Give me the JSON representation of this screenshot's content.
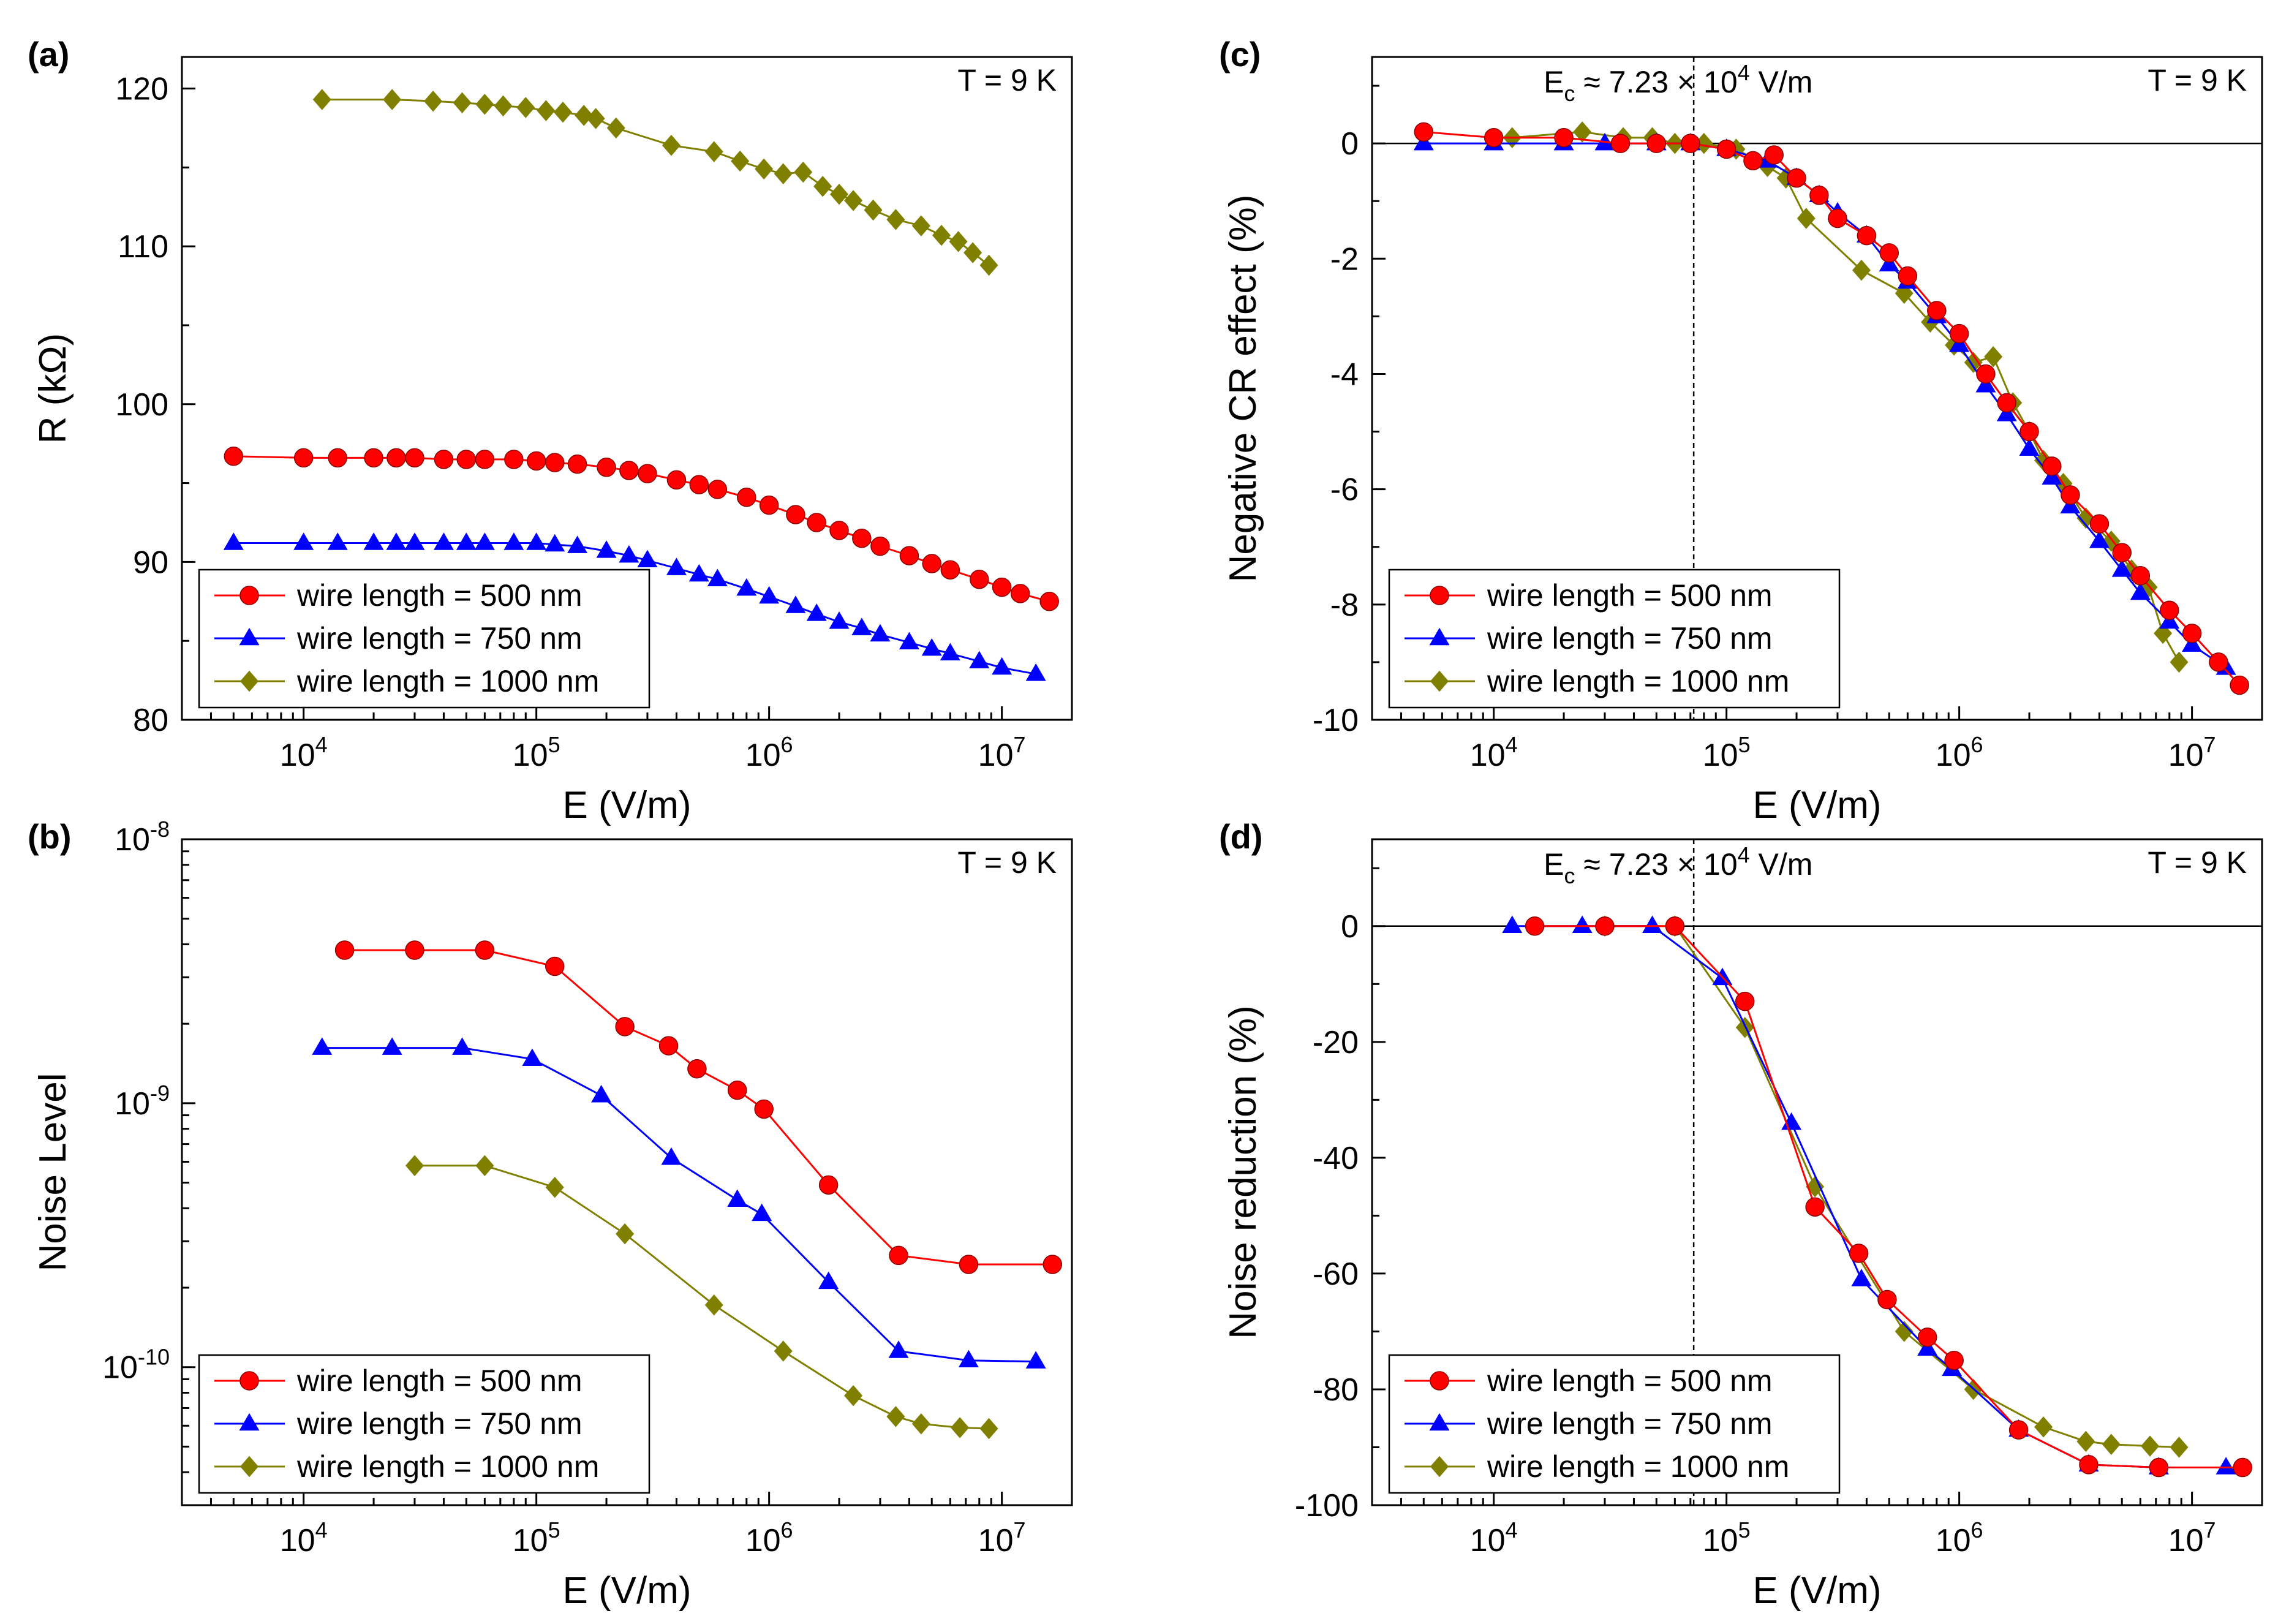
{
  "chart_data": [
    {
      "panel": "(a)",
      "type": "line",
      "annotation": "T = 9 K",
      "xlabel": "E (V/m)",
      "ylabel": "R (kΩ)",
      "xscale": "log",
      "xlim": [
        3000,
        20000000
      ],
      "ylim": [
        80,
        122
      ],
      "yticks": [
        80,
        90,
        100,
        110,
        120
      ],
      "xticks": [
        10000,
        100000,
        1000000,
        10000000
      ],
      "legend_position": "bottom-left",
      "series": [
        {
          "name": "wire length = 500 nm",
          "color": "#ff0000",
          "marker": "circle",
          "x": [
            5000,
            10000,
            14000,
            20000,
            25000,
            30000,
            40000,
            50000,
            60000,
            80000,
            100000,
            120000,
            150000,
            200000,
            250000,
            300000,
            400000,
            500000,
            600000,
            800000,
            1000000,
            1300000,
            1600000,
            2000000,
            2500000,
            3000000,
            4000000,
            5000000,
            6000000,
            8000000,
            10000000,
            12000000,
            16000000
          ],
          "y": [
            96.7,
            96.6,
            96.6,
            96.6,
            96.6,
            96.6,
            96.5,
            96.5,
            96.5,
            96.5,
            96.4,
            96.3,
            96.2,
            96.0,
            95.8,
            95.6,
            95.2,
            94.9,
            94.6,
            94.1,
            93.6,
            93.0,
            92.5,
            92.0,
            91.5,
            91.0,
            90.4,
            89.9,
            89.5,
            88.9,
            88.4,
            88.0,
            87.5
          ]
        },
        {
          "name": "wire length = 750 nm",
          "color": "#0000ff",
          "marker": "triangle",
          "x": [
            5000,
            10000,
            14000,
            20000,
            25000,
            30000,
            40000,
            50000,
            60000,
            80000,
            100000,
            120000,
            150000,
            200000,
            250000,
            300000,
            400000,
            500000,
            600000,
            800000,
            1000000,
            1300000,
            1600000,
            2000000,
            2500000,
            3000000,
            4000000,
            5000000,
            6000000,
            8000000,
            10000000,
            14000000
          ],
          "y": [
            91.2,
            91.2,
            91.2,
            91.2,
            91.2,
            91.2,
            91.2,
            91.2,
            91.2,
            91.2,
            91.2,
            91.1,
            91.0,
            90.7,
            90.4,
            90.1,
            89.6,
            89.2,
            88.9,
            88.3,
            87.8,
            87.2,
            86.7,
            86.2,
            85.8,
            85.4,
            84.9,
            84.5,
            84.2,
            83.7,
            83.3,
            82.9
          ]
        },
        {
          "name": "wire length = 1000 nm",
          "color": "#808000",
          "marker": "diamond",
          "x": [
            12000,
            24000,
            36000,
            48000,
            60000,
            72000,
            90000,
            110000,
            130000,
            160000,
            180000,
            220000,
            380000,
            580000,
            750000,
            950000,
            1150000,
            1400000,
            1700000,
            2000000,
            2300000,
            2800000,
            3500000,
            4500000,
            5500000,
            6500000,
            7500000,
            8800000
          ],
          "y": [
            119.3,
            119.3,
            119.2,
            119.1,
            119.0,
            118.9,
            118.8,
            118.6,
            118.5,
            118.3,
            118.1,
            117.5,
            116.4,
            116.0,
            115.4,
            114.9,
            114.6,
            114.7,
            113.8,
            113.3,
            112.9,
            112.3,
            111.7,
            111.3,
            110.7,
            110.3,
            109.6,
            108.8
          ]
        }
      ]
    },
    {
      "panel": "(b)",
      "type": "line",
      "annotation": "T = 9 K",
      "xlabel": "E (V/m)",
      "ylabel": "Noise Level",
      "xscale": "log",
      "yscale": "log",
      "xlim": [
        3000,
        20000000
      ],
      "ylim": [
        3e-11,
        1e-08
      ],
      "xticks": [
        10000,
        100000,
        1000000,
        10000000
      ],
      "yticks": [
        1e-10,
        1e-09,
        1e-08
      ],
      "legend_position": "bottom-left",
      "series": [
        {
          "name": "wire length = 500 nm",
          "color": "#ff0000",
          "marker": "circle",
          "x": [
            15000,
            30000,
            60000,
            120000,
            240000,
            370000,
            490000,
            730000,
            950000,
            1800000,
            3600000,
            7200000,
            16500000
          ],
          "y": [
            3.8e-09,
            3.8e-09,
            3.8e-09,
            3.3e-09,
            1.95e-09,
            1.65e-09,
            1.35e-09,
            1.12e-09,
            9.5e-10,
            4.9e-10,
            2.65e-10,
            2.45e-10,
            2.45e-10
          ]
        },
        {
          "name": "wire length = 750 nm",
          "color": "#0000ff",
          "marker": "triangle",
          "x": [
            12000,
            24000,
            48000,
            96000,
            190000,
            380000,
            730000,
            930000,
            1800000,
            3600000,
            7200000,
            14000000
          ],
          "y": [
            1.62e-09,
            1.62e-09,
            1.62e-09,
            1.47e-09,
            1.07e-09,
            6.2e-10,
            4.3e-10,
            3.8e-10,
            2.1e-10,
            1.15e-10,
            1.06e-10,
            1.05e-10
          ]
        },
        {
          "name": "wire length = 1000 nm",
          "color": "#808000",
          "marker": "diamond",
          "x": [
            30000,
            60000,
            120000,
            240000,
            580000,
            1150000,
            2300000,
            3500000,
            4500000,
            6600000,
            8800000
          ],
          "y": [
            5.8e-10,
            5.8e-10,
            4.8e-10,
            3.2e-10,
            1.72e-10,
            1.15e-10,
            7.8e-11,
            6.5e-11,
            6.1e-11,
            5.9e-11,
            5.85e-11
          ]
        }
      ]
    },
    {
      "panel": "(c)",
      "type": "line",
      "annotation": "T = 9 K",
      "xlabel": "E (V/m)",
      "ylabel": "Negative CR effect (%)",
      "xscale": "log",
      "xlim": [
        3000,
        20000000
      ],
      "ylim": [
        -10,
        1.5
      ],
      "yticks": [
        -10,
        -8,
        -6,
        -4,
        -2,
        0
      ],
      "xticks": [
        10000,
        100000,
        1000000,
        10000000
      ],
      "threshold": {
        "label_main": "E",
        "label_sub": "c",
        "label_rest": " ≈ 7.23 × 10",
        "label_sup": "4",
        "label_unit": " V/m",
        "value": 72300
      },
      "legend_position": "bottom-left",
      "series": [
        {
          "name": "wire length = 500 nm",
          "color": "#ff0000",
          "marker": "circle",
          "x": [
            5000,
            10000,
            20000,
            35000,
            50000,
            70000,
            100000,
            130000,
            160000,
            200000,
            250000,
            300000,
            400000,
            500000,
            600000,
            800000,
            1000000,
            1300000,
            1600000,
            2000000,
            2500000,
            3000000,
            4000000,
            5000000,
            6000000,
            8000000,
            10000000,
            13000000,
            16000000
          ],
          "y": [
            0.2,
            0.1,
            0.1,
            0.0,
            0.0,
            0.0,
            -0.1,
            -0.3,
            -0.2,
            -0.6,
            -0.9,
            -1.3,
            -1.6,
            -1.9,
            -2.3,
            -2.9,
            -3.3,
            -4.0,
            -4.5,
            -5.0,
            -5.6,
            -6.1,
            -6.6,
            -7.1,
            -7.5,
            -8.1,
            -8.5,
            -9.0,
            -9.4
          ]
        },
        {
          "name": "wire length = 750 nm",
          "color": "#0000ff",
          "marker": "triangle",
          "x": [
            5000,
            10000,
            20000,
            30000,
            50000,
            70000,
            100000,
            150000,
            200000,
            250000,
            300000,
            400000,
            500000,
            600000,
            800000,
            1000000,
            1300000,
            1600000,
            2000000,
            2500000,
            3000000,
            4000000,
            5000000,
            6000000,
            8000000,
            10000000,
            14000000
          ],
          "y": [
            0.0,
            0.0,
            0.0,
            0.0,
            0.0,
            0.0,
            -0.1,
            -0.3,
            -0.6,
            -0.9,
            -1.2,
            -1.6,
            -2.1,
            -2.4,
            -3.0,
            -3.5,
            -4.2,
            -4.7,
            -5.3,
            -5.8,
            -6.3,
            -6.9,
            -7.4,
            -7.8,
            -8.3,
            -8.7,
            -9.1
          ]
        },
        {
          "name": "wire length = 1000 nm",
          "color": "#808000",
          "marker": "diamond",
          "x": [
            12000,
            24000,
            36000,
            48000,
            60000,
            80000,
            110000,
            150000,
            180000,
            220000,
            380000,
            580000,
            750000,
            950000,
            1150000,
            1400000,
            1700000,
            2000000,
            2300000,
            2800000,
            3500000,
            4500000,
            5500000,
            6500000,
            7500000,
            8800000
          ],
          "y": [
            0.1,
            0.2,
            0.1,
            0.1,
            0.0,
            0.0,
            -0.1,
            -0.4,
            -0.6,
            -1.3,
            -2.2,
            -2.6,
            -3.1,
            -3.5,
            -3.8,
            -3.7,
            -4.5,
            -5.0,
            -5.5,
            -5.9,
            -6.5,
            -6.9,
            -7.4,
            -7.7,
            -8.5,
            -9.0
          ]
        }
      ]
    },
    {
      "panel": "(d)",
      "type": "line",
      "annotation": "T = 9 K",
      "xlabel": "E (V/m)",
      "ylabel": "Noise reduction (%)",
      "xscale": "log",
      "xlim": [
        3000,
        20000000
      ],
      "ylim": [
        -100,
        15
      ],
      "yticks": [
        -100,
        -80,
        -60,
        -40,
        -20,
        0
      ],
      "xticks": [
        10000,
        100000,
        1000000,
        10000000
      ],
      "threshold": {
        "label_main": "E",
        "label_sub": "c",
        "label_rest": " ≈ 7.23 × 10",
        "label_sup": "4",
        "label_unit": " V/m",
        "value": 72300
      },
      "legend_position": "bottom-left",
      "series": [
        {
          "name": "wire length = 500 nm",
          "color": "#ff0000",
          "marker": "circle",
          "x": [
            15000,
            30000,
            60000,
            120000,
            240000,
            370000,
            490000,
            730000,
            950000,
            1800000,
            3600000,
            7200000,
            16500000
          ],
          "y": [
            0,
            0,
            0,
            -13,
            -48.5,
            -56.5,
            -64.5,
            -71,
            -75,
            -87,
            -93,
            -93.5,
            -93.5
          ]
        },
        {
          "name": "wire length = 750 nm",
          "color": "#0000ff",
          "marker": "triangle",
          "x": [
            12000,
            24000,
            48000,
            96000,
            190000,
            380000,
            730000,
            930000,
            1800000,
            3600000,
            7200000,
            14000000
          ],
          "y": [
            0,
            0,
            0,
            -9,
            -34,
            -61,
            -73,
            -76.5,
            -87,
            -93,
            -93.5,
            -93.5
          ]
        },
        {
          "name": "wire length = 1000 nm",
          "color": "#808000",
          "marker": "diamond",
          "x": [
            30000,
            60000,
            120000,
            240000,
            580000,
            1150000,
            2300000,
            3500000,
            4500000,
            6600000,
            8800000
          ],
          "y": [
            0,
            0,
            -17.5,
            -45,
            -70,
            -80,
            -86.5,
            -89,
            -89.5,
            -89.8,
            -90
          ]
        }
      ]
    }
  ]
}
